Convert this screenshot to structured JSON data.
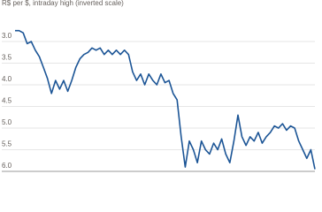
{
  "chart_data": {
    "type": "line",
    "subtitle": "R$ per $, intraday high (inverted scale)",
    "series": [
      {
        "color": "#1c5596",
        "values": [
          2.75,
          2.75,
          2.8,
          3.05,
          3.0,
          3.2,
          3.35,
          3.6,
          3.85,
          4.2,
          3.9,
          4.1,
          3.9,
          4.15,
          3.9,
          3.6,
          3.4,
          3.3,
          3.25,
          3.15,
          3.2,
          3.15,
          3.3,
          3.2,
          3.3,
          3.2,
          3.3,
          3.2,
          3.3,
          3.7,
          3.9,
          3.75,
          4.0,
          3.75,
          3.9,
          4.0,
          3.75,
          3.95,
          3.9,
          4.2,
          4.35,
          5.2,
          5.9,
          5.3,
          5.5,
          5.8,
          5.3,
          5.5,
          5.6,
          5.35,
          5.5,
          5.25,
          5.6,
          5.8,
          5.3,
          4.7,
          5.2,
          5.4,
          5.2,
          5.3,
          5.1,
          5.35,
          5.2,
          5.1,
          4.95,
          5.0,
          4.9,
          5.05,
          4.95,
          5.0,
          5.3,
          5.5,
          5.7,
          5.5,
          5.95
        ]
      }
    ],
    "ylim": [
      2.6,
      6.0
    ],
    "inverted": true,
    "yticks": [
      {
        "value": 3.0,
        "label": "3.0"
      },
      3.5,
      {
        "value": 4.0,
        "label": "4.0"
      },
      4.5,
      {
        "value": 5.0,
        "label": "5.0"
      },
      5.5,
      {
        "value": 6.0,
        "label": "6.0"
      }
    ],
    "grid": true
  }
}
